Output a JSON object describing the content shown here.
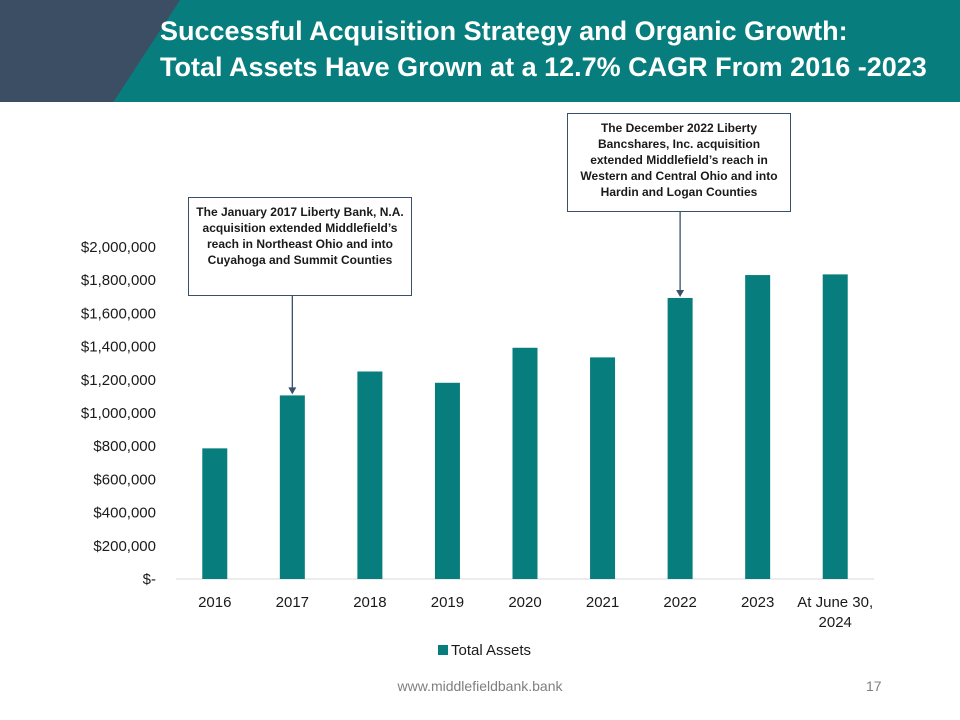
{
  "header": {
    "title_line1": "Successful Acquisition Strategy and Organic Growth:",
    "title_line2": "Total Assets Have Grown at a 12.7% CAGR From 2016 -2023"
  },
  "callouts": {
    "liberty_bank": "The January 2017 Liberty Bank, N.A. acquisition extended Middlefield’s reach in Northeast Ohio and into Cuyahoga and Summit Counties",
    "liberty_bancshares": "The December 2022 Liberty Bancshares, Inc. acquisition extended Middlefield’s reach in Western and Central Ohio and into Hardin and Logan Counties"
  },
  "footer": {
    "url": "www.middlefieldbank.bank",
    "page": "17"
  },
  "colors": {
    "header": "#077d7d",
    "header_accent": "#3c4e63",
    "bar": "#077d7d"
  },
  "chart_data": {
    "type": "bar",
    "categories": [
      "2016",
      "2017",
      "2018",
      "2019",
      "2020",
      "2021",
      "2022",
      "2023",
      "At June 30, 2024"
    ],
    "category_lines": [
      [
        "2016"
      ],
      [
        "2017"
      ],
      [
        "2018"
      ],
      [
        "2019"
      ],
      [
        "2020"
      ],
      [
        "2021"
      ],
      [
        "2022"
      ],
      [
        "2023"
      ],
      [
        "At June 30,",
        "2024"
      ]
    ],
    "series": [
      {
        "name": "Total Assets",
        "values": [
          787000,
          1106000,
          1250000,
          1182000,
          1393000,
          1335000,
          1693000,
          1831000,
          1835000
        ]
      }
    ],
    "yticks": [
      0,
      200000,
      400000,
      600000,
      800000,
      1000000,
      1200000,
      1400000,
      1600000,
      1800000,
      2000000
    ],
    "ytick_labels": [
      "$-",
      "$200,000",
      "$400,000",
      "$600,000",
      "$800,000",
      "$1,000,000",
      "$1,200,000",
      "$1,400,000",
      "$1,600,000",
      "$1,800,000",
      "$2,000,000"
    ],
    "ylim": [
      0,
      2000000
    ],
    "grid": false,
    "legend": "bottom"
  }
}
